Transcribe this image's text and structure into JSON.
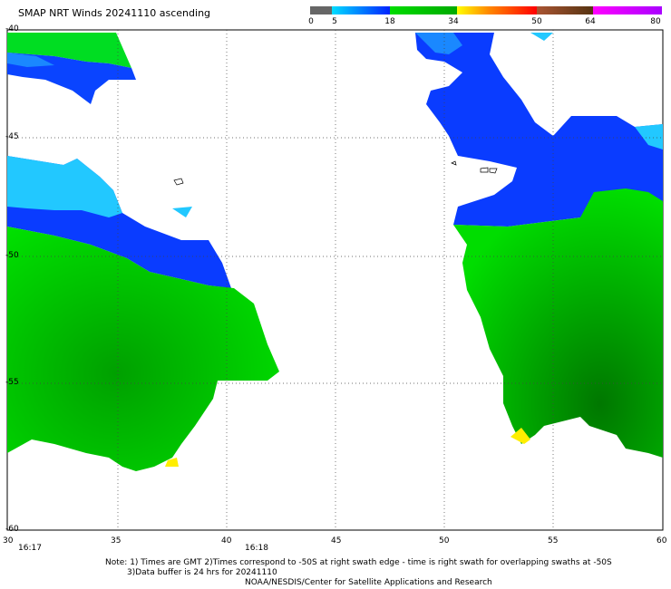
{
  "title": "SMAP NRT Winds 20241110 ascending",
  "colorbar": {
    "ticks": [
      "0",
      "5",
      "18",
      "34",
      "50",
      "64",
      "80"
    ],
    "colors": [
      "#555555",
      "#888888",
      "#00c8ff",
      "#0033ff",
      "#00cc00",
      "#ffff00",
      "#ff8800",
      "#ff0000",
      "#a0522d",
      "#ff00ff"
    ]
  },
  "map": {
    "lat_labels": [
      "-40",
      "-45",
      "-50",
      "-55",
      "-60"
    ],
    "lon_labels": [
      "30",
      "35",
      "40",
      "45",
      "50",
      "55",
      "60"
    ],
    "time_labels": [
      "16:17",
      "16:18"
    ]
  },
  "notes": {
    "line1": "Note: 1) Times are GMT 2)Times correspond to -50S at right swath edge - time is right swath for overlapping swaths at -50S",
    "line2": "3)Data buffer is 24 hrs for 20241110",
    "line3": "NOAA/NESDIS/Center for Satellite Applications and Research"
  }
}
